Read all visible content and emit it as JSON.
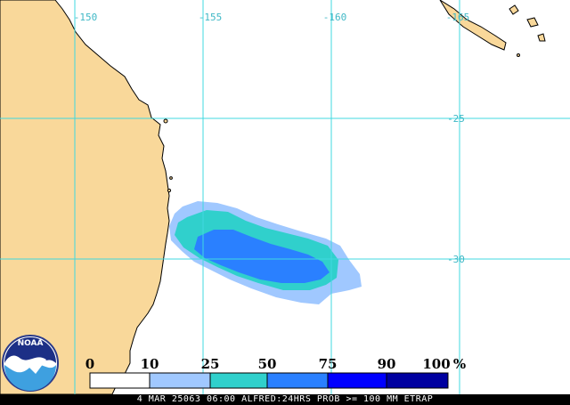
{
  "map": {
    "lon_labels": [
      "-150",
      "-155",
      "-160",
      "-165"
    ],
    "lat_labels": [
      "-25",
      "-30"
    ],
    "colors": {
      "land": "#f9d89a",
      "ocean": "#ffffff",
      "gridline": "#40d8e0",
      "gridlabel": "#3fb8c6",
      "coast": "#000000"
    },
    "probability_field": {
      "levels_percent": [
        10,
        25,
        50,
        75
      ],
      "colors": [
        "#a0c8ff",
        "#30d0cc",
        "#2a80ff",
        "#0000ff"
      ]
    }
  },
  "legend": {
    "labels": [
      "0",
      "10",
      "25",
      "50",
      "75",
      "90",
      "100",
      "%"
    ],
    "colors": [
      "#ffffff",
      "#a0c8ff",
      "#30d0cc",
      "#2a80ff",
      "#0000ff",
      "#0000a0"
    ]
  },
  "logo": {
    "text": "NOAA",
    "icon": "noaa-logo-icon"
  },
  "caption": "4 MAR 25063 06:00 ALFRED:24HRS PROB >= 100 MM ETRAP"
}
